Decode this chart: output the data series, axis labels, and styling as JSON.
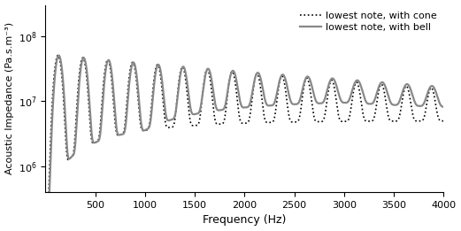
{
  "title": "",
  "xlabel": "Frequency (Hz)",
  "ylabel": "Acoustic Impedance (Pa.s.m⁻³)",
  "xlim": [
    0,
    4000
  ],
  "ylim": [
    5e-07,
    0.0002
  ],
  "legend": [
    "lowest note, with cone",
    "lowest note, with bell"
  ],
  "cone_color": "black",
  "bell_color": "#888888",
  "cone_linewidth": 1.2,
  "bell_linewidth": 1.6,
  "xticks": [
    500,
    1000,
    1500,
    2000,
    2500,
    3000,
    3500,
    4000
  ],
  "background": "white",
  "peak_freq_hz": 250,
  "first_peak_hz": 250
}
